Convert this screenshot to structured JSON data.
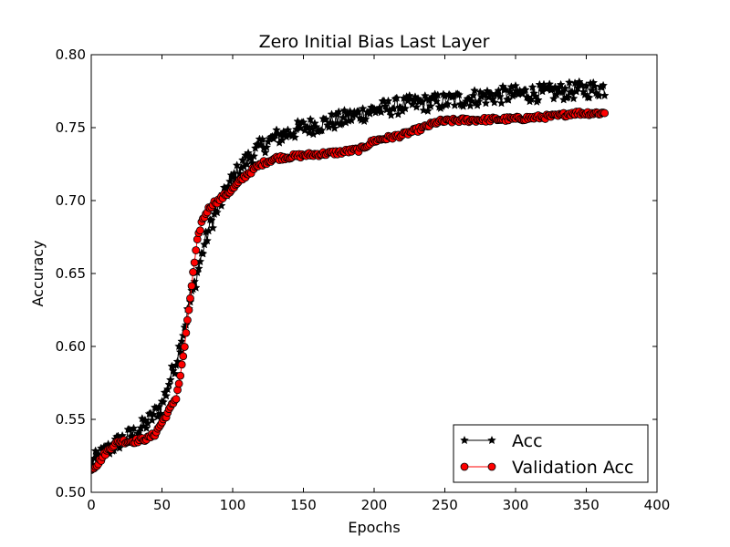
{
  "chart_data": {
    "type": "line",
    "title": "Zero Initial Bias Last Layer",
    "xlabel": "Epochs",
    "ylabel": "Accuracy",
    "xlim": [
      0,
      400
    ],
    "ylim": [
      0.5,
      0.8
    ],
    "xticks": [
      0,
      50,
      100,
      150,
      200,
      250,
      300,
      350,
      400
    ],
    "xtick_labels": [
      "0",
      "50",
      "100",
      "150",
      "200",
      "250",
      "300",
      "350",
      "400"
    ],
    "yticks": [
      0.5,
      0.55,
      0.6,
      0.65,
      0.7,
      0.75,
      0.8
    ],
    "ytick_labels": [
      "0.50",
      "0.55",
      "0.60",
      "0.65",
      "0.70",
      "0.75",
      "0.80"
    ],
    "grid": false,
    "legend_position": "lower-right",
    "series": [
      {
        "name": "Acc",
        "color": "#000000",
        "marker": "star",
        "keypoints": [
          [
            0,
            0.52
          ],
          [
            10,
            0.528
          ],
          [
            20,
            0.535
          ],
          [
            30,
            0.54
          ],
          [
            40,
            0.548
          ],
          [
            50,
            0.56
          ],
          [
            60,
            0.59
          ],
          [
            65,
            0.61
          ],
          [
            70,
            0.63
          ],
          [
            75,
            0.65
          ],
          [
            80,
            0.67
          ],
          [
            85,
            0.685
          ],
          [
            90,
            0.695
          ],
          [
            95,
            0.705
          ],
          [
            100,
            0.715
          ],
          [
            110,
            0.728
          ],
          [
            120,
            0.737
          ],
          [
            130,
            0.743
          ],
          [
            150,
            0.75
          ],
          [
            175,
            0.755
          ],
          [
            200,
            0.762
          ],
          [
            225,
            0.766
          ],
          [
            250,
            0.768
          ],
          [
            275,
            0.771
          ],
          [
            300,
            0.773
          ],
          [
            325,
            0.774
          ],
          [
            350,
            0.776
          ],
          [
            363,
            0.777
          ]
        ],
        "noise_amplitude": 0.006
      },
      {
        "name": "Validation Acc",
        "color": "#ff0000",
        "marker": "circle",
        "keypoints": [
          [
            0,
            0.516
          ],
          [
            5,
            0.52
          ],
          [
            10,
            0.527
          ],
          [
            15,
            0.532
          ],
          [
            20,
            0.535
          ],
          [
            30,
            0.535
          ],
          [
            40,
            0.537
          ],
          [
            45,
            0.54
          ],
          [
            50,
            0.548
          ],
          [
            55,
            0.556
          ],
          [
            60,
            0.565
          ],
          [
            63,
            0.58
          ],
          [
            66,
            0.6
          ],
          [
            69,
            0.625
          ],
          [
            72,
            0.65
          ],
          [
            75,
            0.672
          ],
          [
            78,
            0.685
          ],
          [
            82,
            0.693
          ],
          [
            86,
            0.698
          ],
          [
            90,
            0.7
          ],
          [
            100,
            0.708
          ],
          [
            110,
            0.718
          ],
          [
            120,
            0.725
          ],
          [
            130,
            0.729
          ],
          [
            150,
            0.731
          ],
          [
            175,
            0.733
          ],
          [
            190,
            0.735
          ],
          [
            200,
            0.741
          ],
          [
            220,
            0.745
          ],
          [
            235,
            0.75
          ],
          [
            245,
            0.754
          ],
          [
            260,
            0.755
          ],
          [
            300,
            0.756
          ],
          [
            330,
            0.758
          ],
          [
            340,
            0.76
          ],
          [
            350,
            0.76
          ],
          [
            363,
            0.76
          ]
        ],
        "noise_amplitude": 0.0015
      }
    ]
  }
}
